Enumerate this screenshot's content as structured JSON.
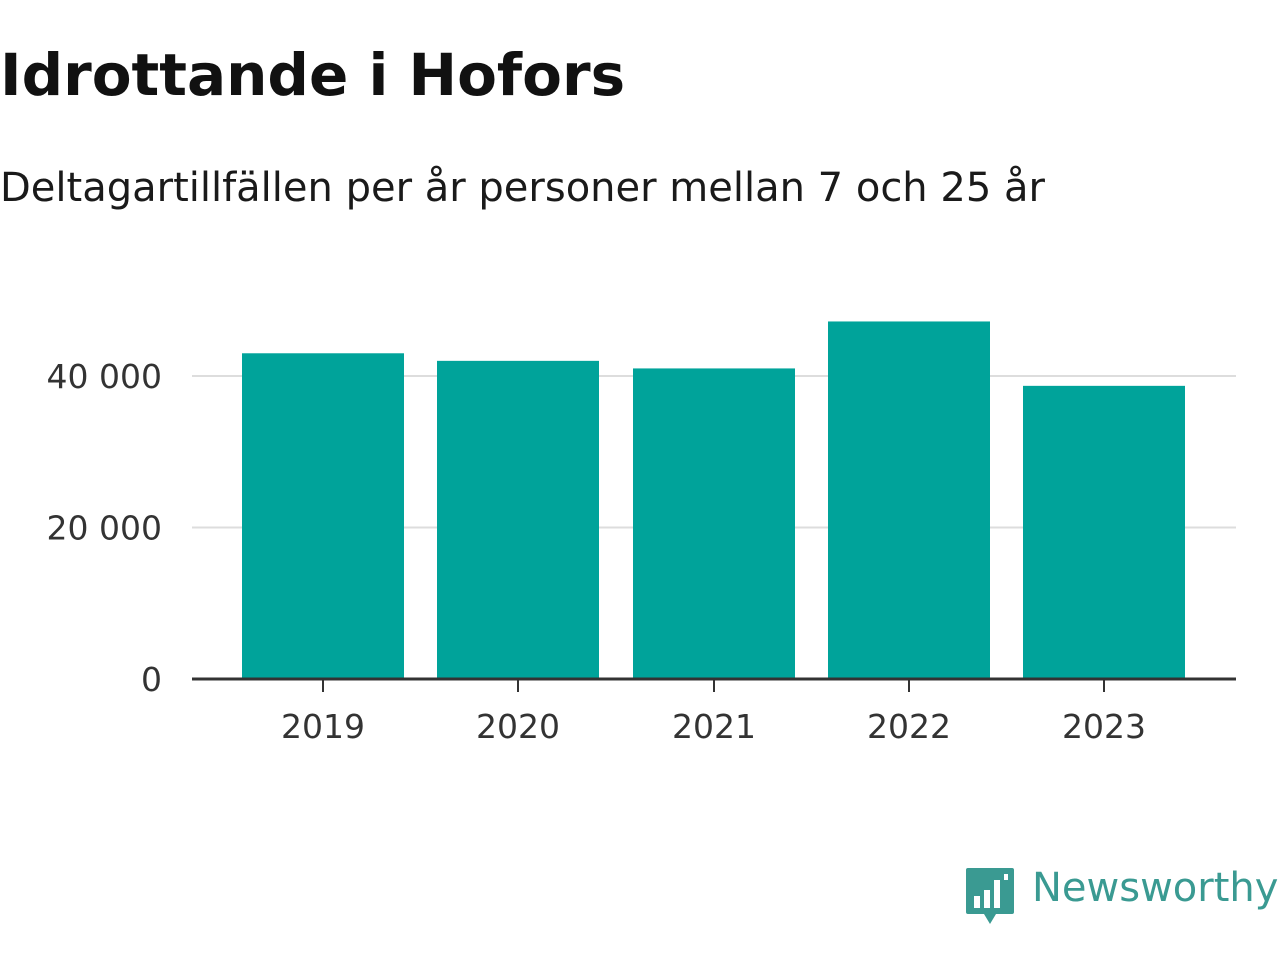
{
  "title": "Idrottande i Hofors",
  "subtitle": "Deltagartillfällen per år personer mellan 7 och 25 år",
  "colors": {
    "bar": "#00a39a",
    "grid": "#dddddd",
    "axis": "#333333",
    "brand": "#3a9a92"
  },
  "chart_data": {
    "type": "bar",
    "categories": [
      "2019",
      "2020",
      "2021",
      "2022",
      "2023"
    ],
    "values": [
      43000,
      42000,
      41000,
      47200,
      38700
    ],
    "ylim": [
      0,
      50000
    ],
    "yticks": [
      0,
      20000,
      40000
    ],
    "ytick_labels": [
      "0",
      "20 000",
      "40 000"
    ],
    "grid": true,
    "legend": "none"
  },
  "branding": {
    "logo_text": "Newsworthy",
    "logo_icon": "bar-chart-speech-bubble-icon"
  }
}
